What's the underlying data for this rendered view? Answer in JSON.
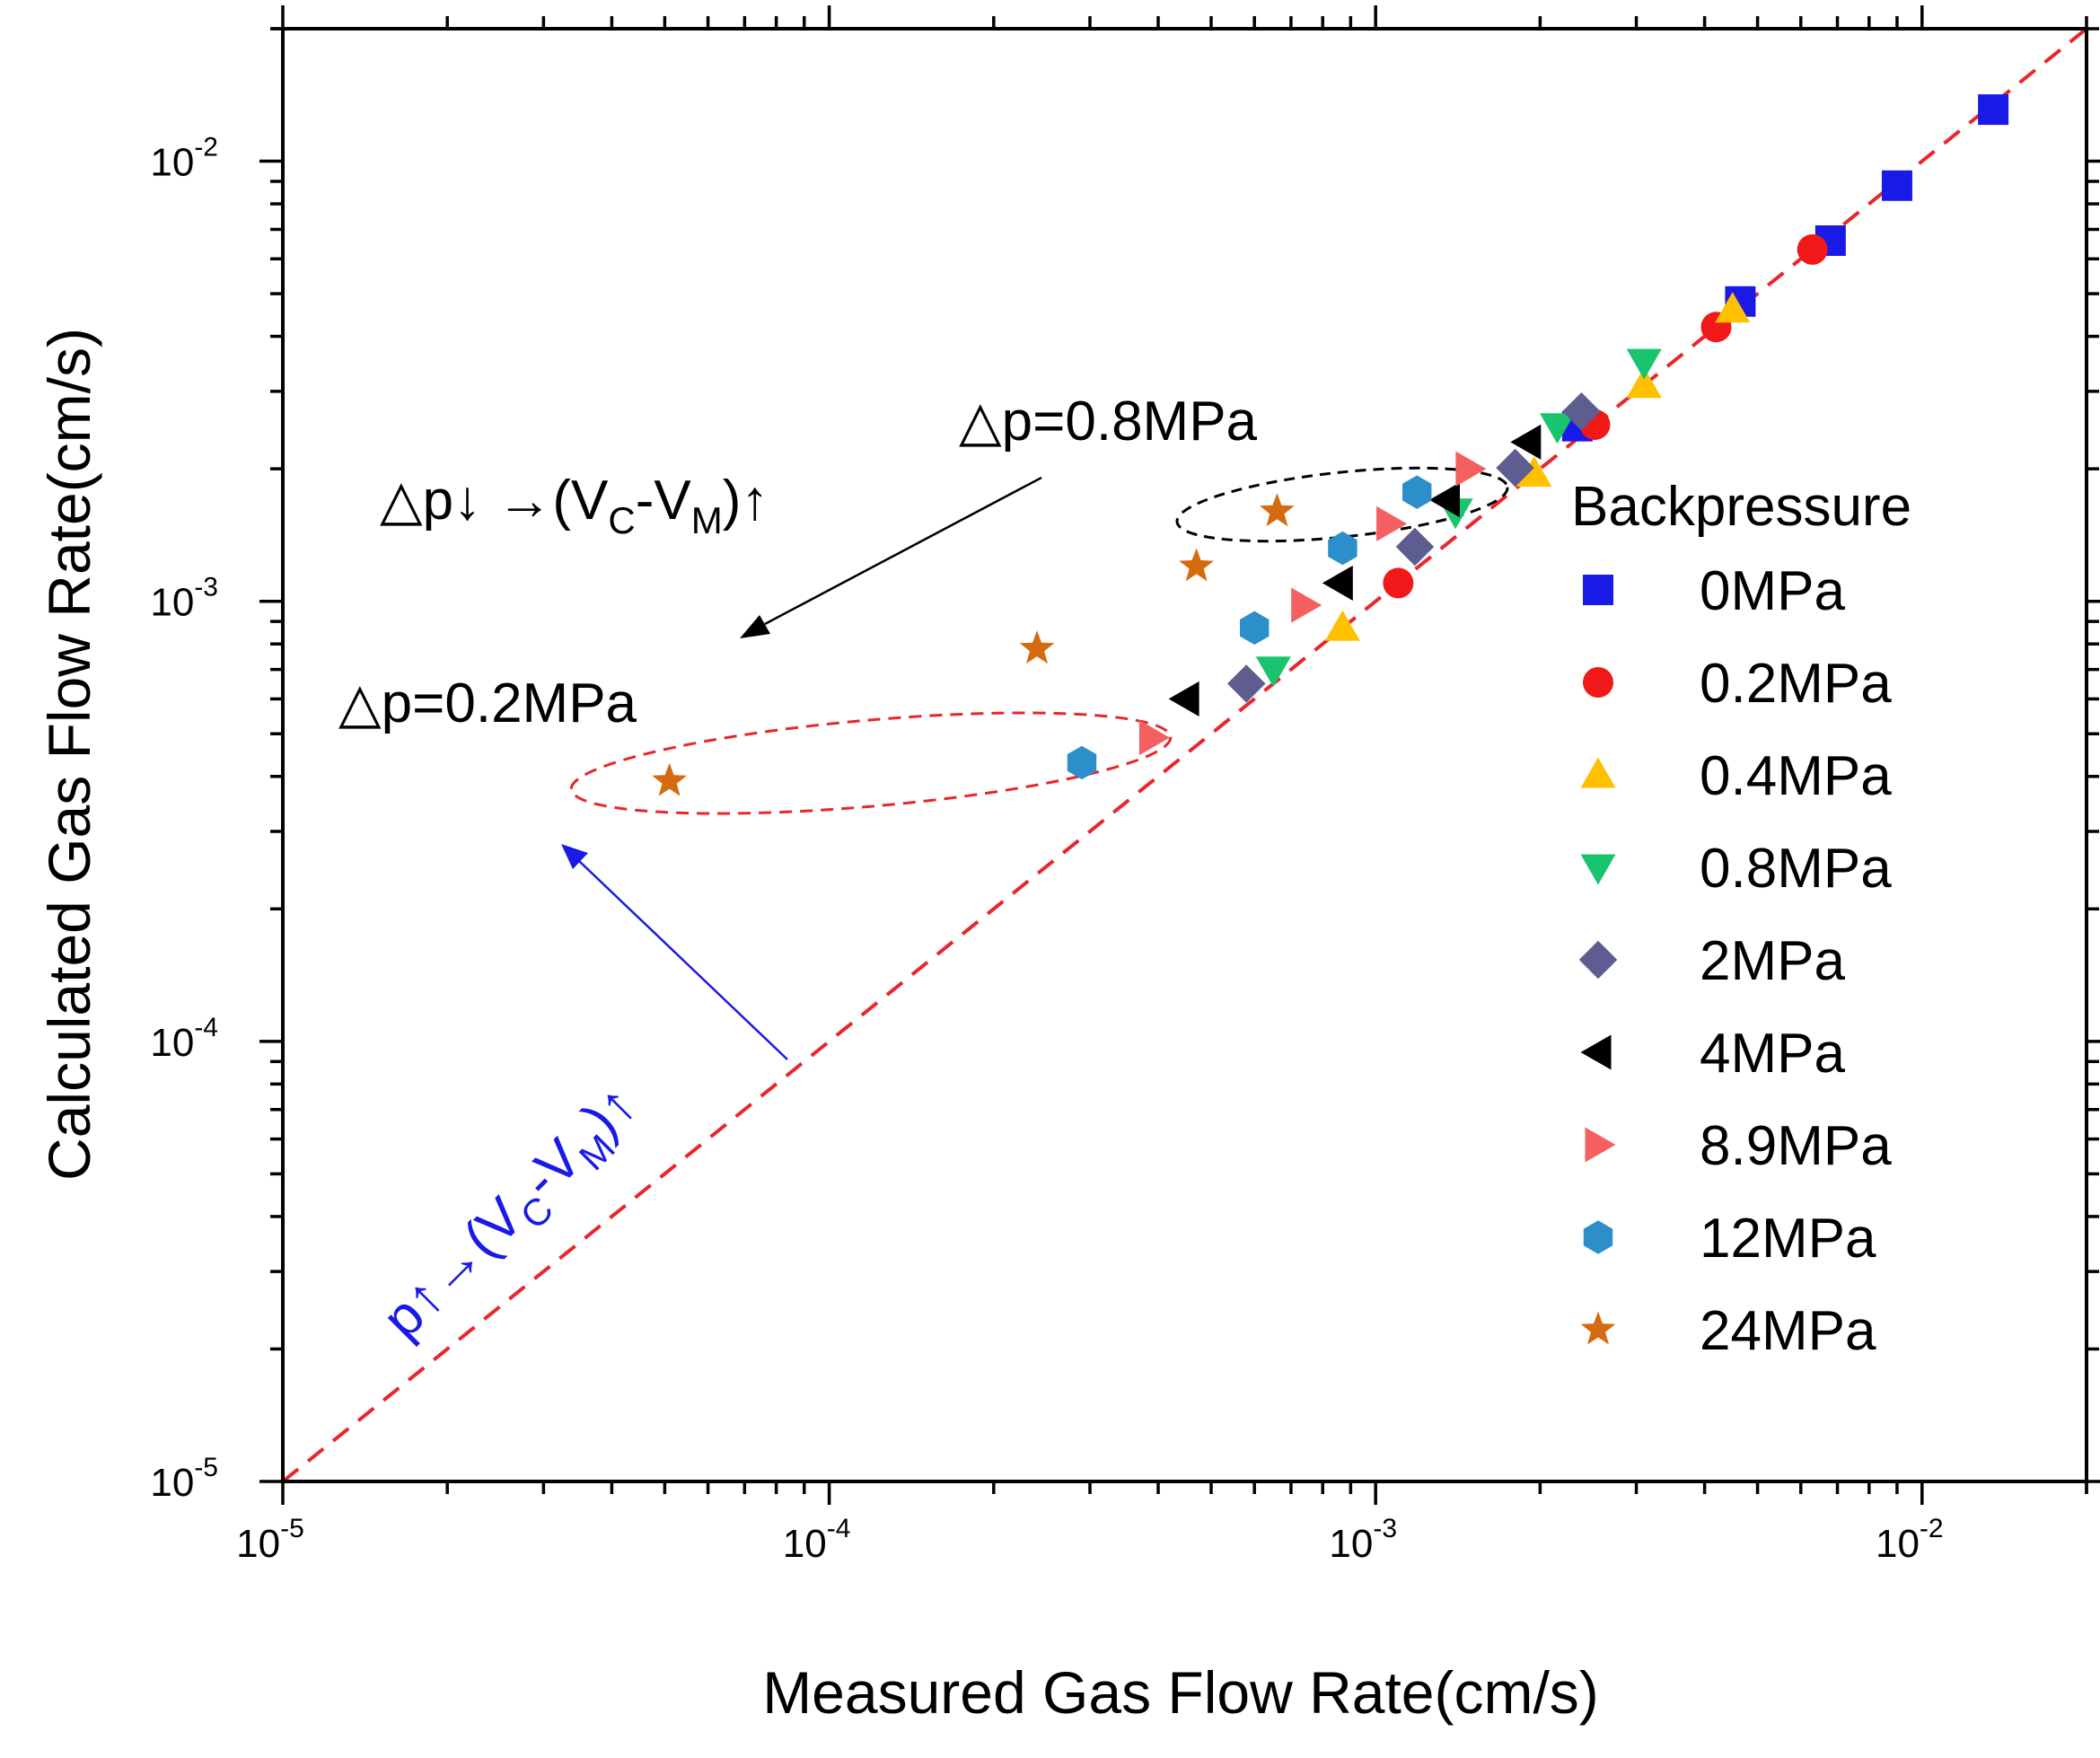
{
  "chart_data": {
    "type": "scatter",
    "xscale": "log",
    "yscale": "log",
    "xlim": [
      1e-05,
      0.02
    ],
    "ylim": [
      1e-05,
      0.02
    ],
    "xlabel": "Measured Gas Flow Rate(cm/s)",
    "ylabel": "Calculated Gas Flow Rate(cm/s)",
    "ticks": [
      {
        "base": "10",
        "exp": "-5",
        "value": 1e-05
      },
      {
        "base": "10",
        "exp": "-4",
        "value": 0.0001
      },
      {
        "base": "10",
        "exp": "-3",
        "value": 0.001
      },
      {
        "base": "10",
        "exp": "-2",
        "value": 0.01
      }
    ],
    "legend_title": "Backpressure",
    "legend_position": "right",
    "reference_line": {
      "style": "dashed",
      "color": "#e8262b",
      "from": [
        1e-05,
        1e-05
      ],
      "to": [
        0.02,
        0.02
      ]
    },
    "series": [
      {
        "name": "0MPa",
        "marker": "square",
        "color": "#1a1ae6",
        "points": [
          [
            0.00234,
            0.0025
          ],
          [
            0.00465,
            0.0048
          ],
          [
            0.0068,
            0.0066
          ],
          [
            0.009,
            0.0088
          ],
          [
            0.0135,
            0.0131
          ]
        ]
      },
      {
        "name": "0.2MPa",
        "marker": "circle",
        "color": "#f01818",
        "points": [
          [
            0.0011,
            0.0011
          ],
          [
            0.00252,
            0.00252
          ],
          [
            0.0042,
            0.0042
          ],
          [
            0.0063,
            0.0063
          ]
        ]
      },
      {
        "name": "0.4MPa",
        "marker": "triangle-up",
        "color": "#ffc000",
        "points": [
          [
            0.00087,
            0.00087
          ],
          [
            0.00195,
            0.00195
          ],
          [
            0.0031,
            0.0031
          ],
          [
            0.0045,
            0.0046
          ]
        ]
      },
      {
        "name": "0.8MPa",
        "marker": "triangle-down",
        "color": "#19c46e",
        "points": [
          [
            0.00065,
            0.0007
          ],
          [
            0.0014,
            0.0016
          ],
          [
            0.00215,
            0.0025
          ],
          [
            0.0031,
            0.0035
          ]
        ]
      },
      {
        "name": "2MPa",
        "marker": "diamond",
        "color": "#5d5d8f",
        "points": [
          [
            0.00058,
            0.00065
          ],
          [
            0.00118,
            0.00133
          ],
          [
            0.0018,
            0.00201
          ],
          [
            0.00238,
            0.0027
          ]
        ]
      },
      {
        "name": "4MPa",
        "marker": "triangle-left",
        "color": "#000000",
        "points": [
          [
            0.00045,
            0.0006
          ],
          [
            0.00086,
            0.0011
          ],
          [
            0.00135,
            0.0017
          ],
          [
            0.0019,
            0.0023
          ]
        ]
      },
      {
        "name": "8.9MPa",
        "marker": "triangle-right",
        "color": "#f46060",
        "points": [
          [
            0.00039,
            0.00049
          ],
          [
            0.00074,
            0.00098
          ],
          [
            0.00106,
            0.0015
          ],
          [
            0.00148,
            0.002
          ]
        ]
      },
      {
        "name": "12MPa",
        "marker": "hexagon",
        "color": "#2c8fc9",
        "points": [
          [
            0.00029,
            0.00043
          ],
          [
            0.0006,
            0.00087
          ],
          [
            0.00087,
            0.00132
          ],
          [
            0.00119,
            0.00177
          ]
        ]
      },
      {
        "name": "24MPa",
        "marker": "star",
        "color": "#d56a0f",
        "points": [
          [
            5.1e-05,
            0.00039
          ],
          [
            0.00024,
            0.00078
          ],
          [
            0.00047,
            0.0012
          ],
          [
            0.00066,
            0.0016
          ]
        ]
      }
    ],
    "annotations": {
      "dp08": "△p=0.8MPa",
      "dp02": "△p=0.2MPa",
      "black_arrow": {
        "prefix": "△p↓ →(V",
        "sub1": "C",
        "mid": "-V",
        "sub2": "M",
        "suffix": ")↑"
      },
      "blue_arrow": {
        "prefix": "p↑→(V",
        "sub1": "C",
        "mid": "-V",
        "sub2": "M",
        "suffix": ")↑"
      }
    }
  }
}
